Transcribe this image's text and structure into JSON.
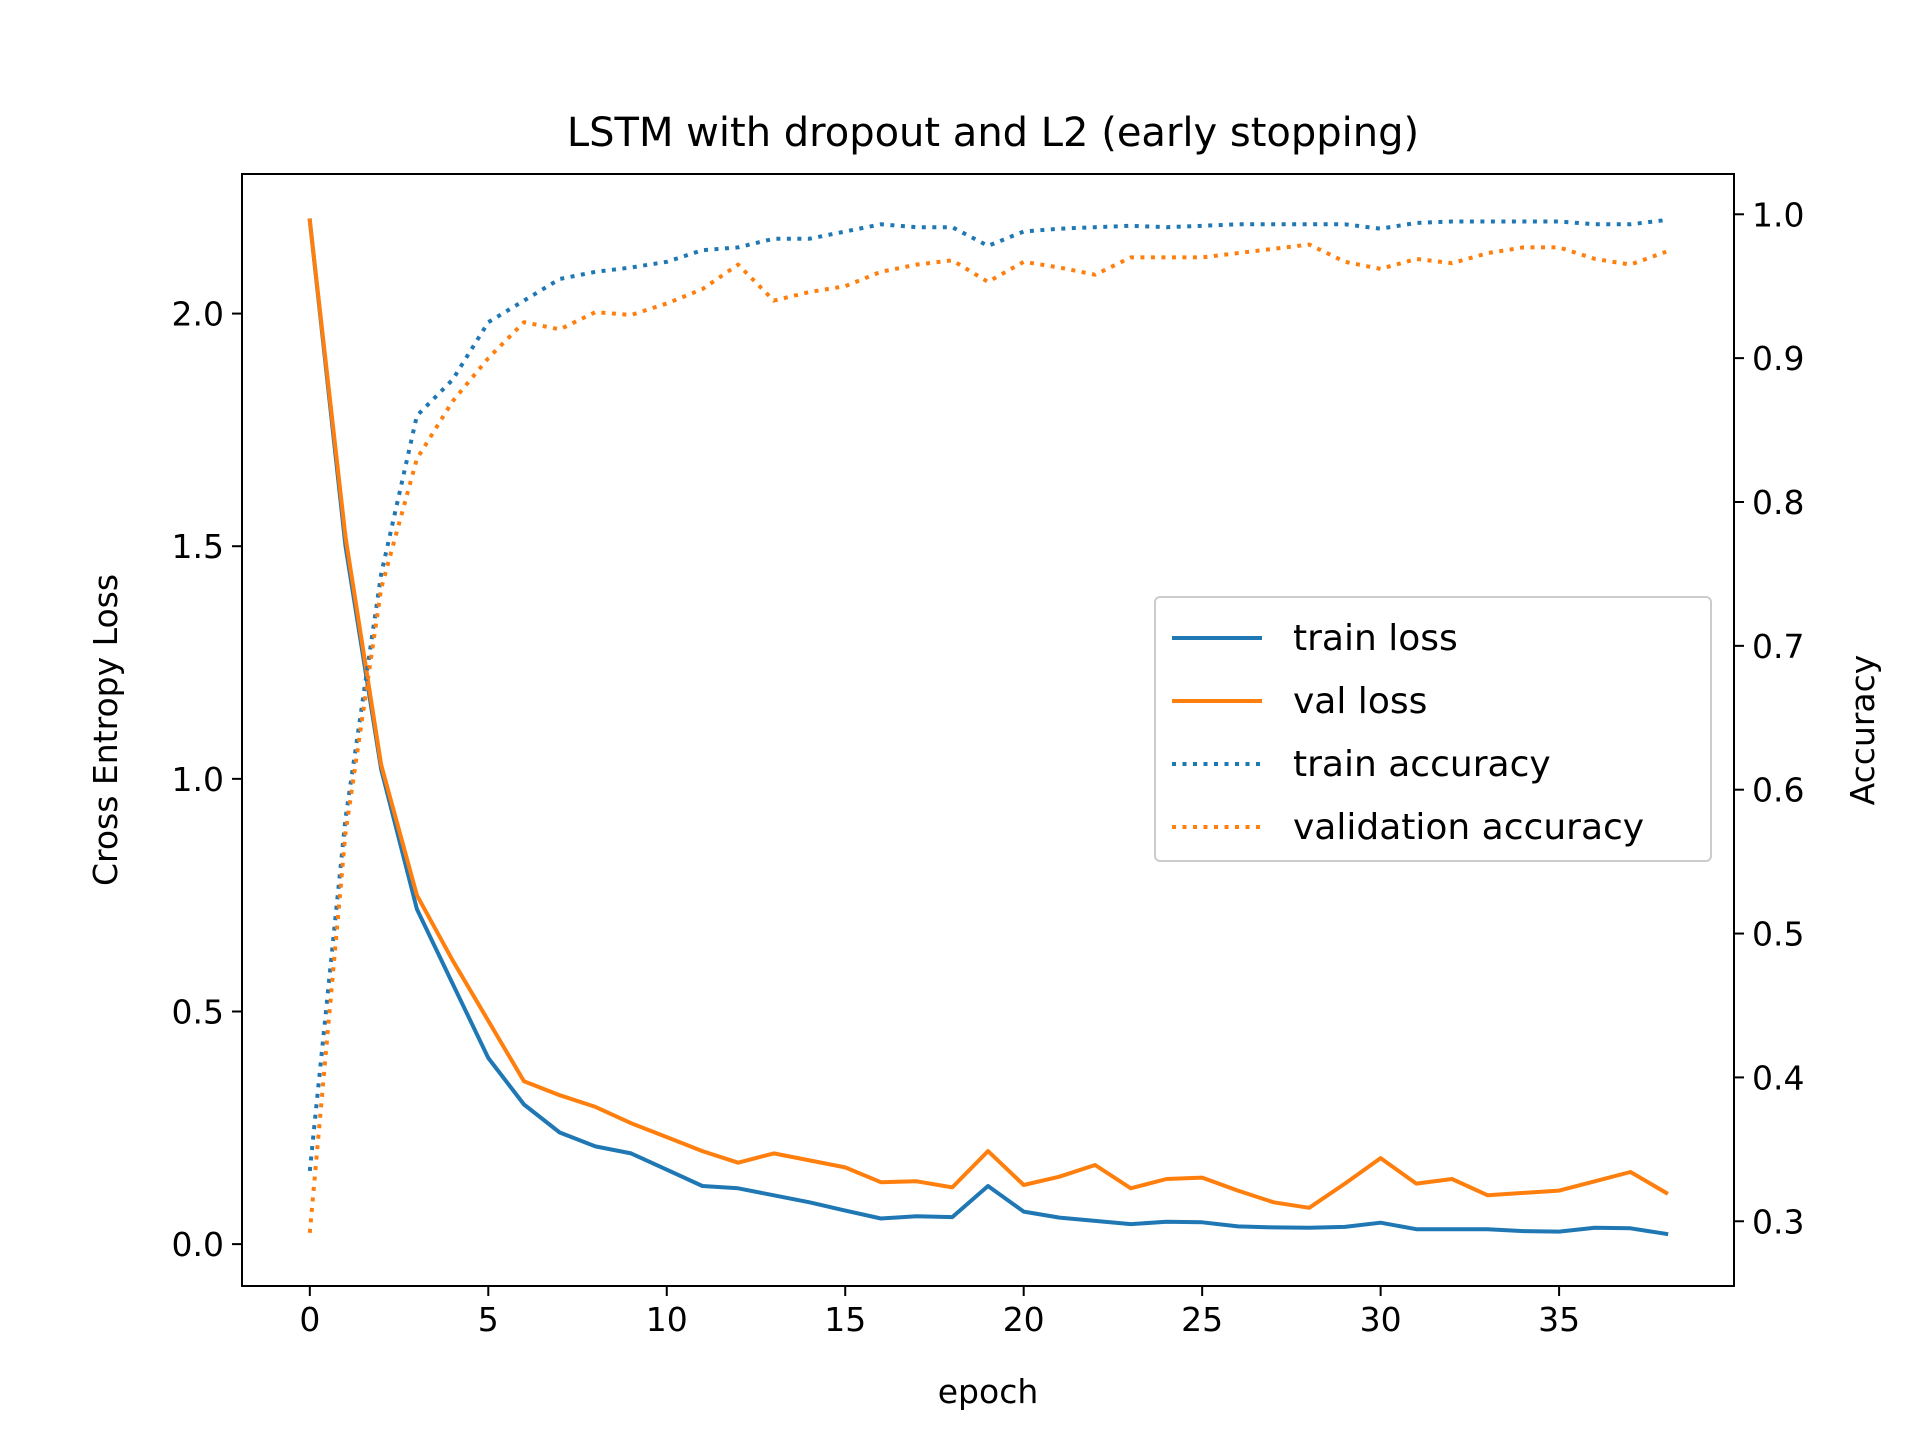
{
  "chart_data": {
    "type": "line",
    "title": "LSTM with dropout and L2 (early stopping)",
    "xlabel": "epoch",
    "ylabel_left": "Cross Entropy Loss",
    "ylabel_right": "Accuracy",
    "xlim": [
      -1.9,
      39.9
    ],
    "ylim_left": [
      -0.09,
      2.3
    ],
    "ylim_right": [
      0.255,
      1.028
    ],
    "x_ticks": [
      0,
      5,
      10,
      15,
      20,
      25,
      30,
      35
    ],
    "x_tick_labels": [
      "0",
      "5",
      "10",
      "15",
      "20",
      "25",
      "30",
      "35"
    ],
    "y_left_ticks": [
      0.0,
      0.5,
      1.0,
      1.5,
      2.0
    ],
    "y_left_tick_labels": [
      "0.0",
      "0.5",
      "1.0",
      "1.5",
      "2.0"
    ],
    "y_right_ticks": [
      0.3,
      0.4,
      0.5,
      0.6,
      0.7,
      0.8,
      0.9,
      1.0
    ],
    "y_right_tick_labels": [
      "0.3",
      "0.4",
      "0.5",
      "0.6",
      "0.7",
      "0.8",
      "0.9",
      "1.0"
    ],
    "grid": false,
    "legend_position": "center-right",
    "x": [
      0,
      1,
      2,
      3,
      4,
      5,
      6,
      7,
      8,
      9,
      10,
      11,
      12,
      13,
      14,
      15,
      16,
      17,
      18,
      19,
      20,
      21,
      22,
      23,
      24,
      25,
      26,
      27,
      28,
      29,
      30,
      31,
      32,
      33,
      34,
      35,
      36,
      37,
      38
    ],
    "series": [
      {
        "name": "train loss",
        "axis": "left",
        "style": "solid",
        "color": "#1f77b4",
        "values": [
          2.2,
          1.5,
          1.02,
          0.72,
          0.56,
          0.4,
          0.3,
          0.24,
          0.21,
          0.195,
          0.16,
          0.125,
          0.12,
          0.105,
          0.09,
          0.072,
          0.055,
          0.06,
          0.058,
          0.125,
          0.07,
          0.057,
          0.05,
          0.043,
          0.048,
          0.047,
          0.038,
          0.036,
          0.035,
          0.037,
          0.046,
          0.032,
          0.032,
          0.032,
          0.028,
          0.027,
          0.035,
          0.034,
          0.022
        ]
      },
      {
        "name": "val loss",
        "axis": "left",
        "style": "solid",
        "color": "#ff7f0e",
        "values": [
          2.2,
          1.52,
          1.03,
          0.75,
          0.61,
          0.48,
          0.35,
          0.32,
          0.295,
          0.26,
          0.23,
          0.2,
          0.175,
          0.195,
          0.18,
          0.165,
          0.133,
          0.135,
          0.122,
          0.2,
          0.127,
          0.145,
          0.17,
          0.12,
          0.14,
          0.143,
          0.115,
          0.09,
          0.078,
          0.13,
          0.185,
          0.13,
          0.14,
          0.105,
          0.11,
          0.115,
          0.135,
          0.155,
          0.11
        ]
      },
      {
        "name": "train accuracy",
        "axis": "right",
        "style": "dotted",
        "color": "#1f77b4",
        "values": [
          0.335,
          0.58,
          0.75,
          0.86,
          0.885,
          0.925,
          0.94,
          0.955,
          0.96,
          0.963,
          0.967,
          0.975,
          0.977,
          0.983,
          0.983,
          0.988,
          0.993,
          0.991,
          0.991,
          0.978,
          0.988,
          0.99,
          0.991,
          0.992,
          0.991,
          0.992,
          0.993,
          0.993,
          0.993,
          0.993,
          0.99,
          0.994,
          0.995,
          0.995,
          0.995,
          0.995,
          0.993,
          0.993,
          0.996
        ]
      },
      {
        "name": "validation accuracy",
        "axis": "right",
        "style": "dotted",
        "color": "#ff7f0e",
        "values": [
          0.292,
          0.57,
          0.74,
          0.83,
          0.87,
          0.9,
          0.925,
          0.92,
          0.932,
          0.93,
          0.938,
          0.948,
          0.965,
          0.94,
          0.946,
          0.95,
          0.96,
          0.965,
          0.968,
          0.953,
          0.967,
          0.963,
          0.958,
          0.97,
          0.97,
          0.97,
          0.973,
          0.976,
          0.979,
          0.967,
          0.962,
          0.969,
          0.966,
          0.973,
          0.977,
          0.977,
          0.969,
          0.965,
          0.974
        ]
      }
    ]
  }
}
